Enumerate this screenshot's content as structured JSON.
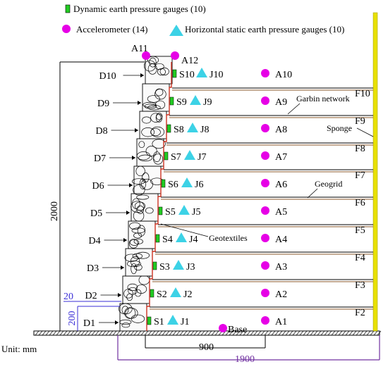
{
  "legend": {
    "dynamic_gauge": "Dynamic earth pressure gauges (10)",
    "accelerometer": "Accelerometer (14)",
    "static_gauge": "Horizontal static earth pressure gauges (10)"
  },
  "colors": {
    "accelerometer": "#e600e6",
    "static_gauge": "#3cd2e6",
    "dynamic_gauge": "#22cc22",
    "wall_face": "#cc3322",
    "geogrid": "#8b5a2b",
    "sponge": "#e8e000",
    "dimension": "#7030a0"
  },
  "layers": {
    "D": [
      "D1",
      "D2",
      "D3",
      "D4",
      "D5",
      "D6",
      "D7",
      "D8",
      "D9",
      "D10"
    ],
    "S": [
      "S1",
      "S2",
      "S3",
      "S4",
      "S5",
      "S6",
      "S7",
      "S8",
      "S9",
      "S10"
    ],
    "J": [
      "J1",
      "J2",
      "J3",
      "J4",
      "J5",
      "J6",
      "J7",
      "J8",
      "J9",
      "J10"
    ],
    "A": [
      "A1",
      "A2",
      "A3",
      "A4",
      "A5",
      "A6",
      "A7",
      "A8",
      "A9",
      "A10"
    ],
    "F": [
      "F2",
      "F3",
      "F4",
      "F5",
      "F6",
      "F7",
      "F8",
      "F9",
      "F10"
    ]
  },
  "top_accelerometers": [
    "A11",
    "A12"
  ],
  "base_label": "Base",
  "annotations": {
    "garbin": "Garbin network",
    "sponge": "Sponge",
    "geogrid": "Geogrid",
    "geotextiles": "Geotextiles"
  },
  "dimensions": {
    "height": "2000",
    "step": "20",
    "course": "200",
    "length_900": "900",
    "length_1900": "1900"
  },
  "unit": "Unit: mm"
}
